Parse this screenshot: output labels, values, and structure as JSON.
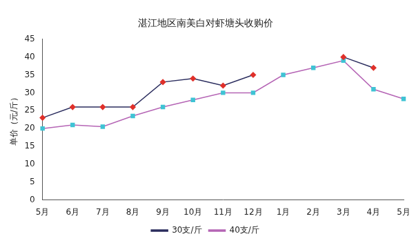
{
  "chart_data": {
    "type": "line",
    "title": "湛江地区南美白对虾塘头收购价",
    "y_label": "单价（元/斤）",
    "categories": [
      "5月",
      "6月",
      "7月",
      "8月",
      "9月",
      "10月",
      "11月",
      "12月",
      "1月",
      "2月",
      "3月",
      "4月",
      "5月"
    ],
    "series": [
      {
        "name": "30支/斤",
        "color": "#2b2d5e",
        "marker": "diamond",
        "line_style": "solid",
        "values": [
          23,
          26,
          26,
          26,
          33,
          34,
          32,
          35,
          null,
          null,
          40,
          37,
          null
        ]
      },
      {
        "name": "40支/斤",
        "color": "#b565b5",
        "marker": "square",
        "line_style": "solid",
        "values": [
          20,
          21,
          20.5,
          23.5,
          26,
          28,
          30,
          30,
          35,
          37,
          39,
          31,
          28.3
        ]
      }
    ],
    "ylim": [
      0,
      45
    ],
    "yticks": [
      0,
      5,
      10,
      15,
      20,
      25,
      30,
      35,
      40,
      45
    ],
    "grid": false,
    "legend": "bottom"
  }
}
